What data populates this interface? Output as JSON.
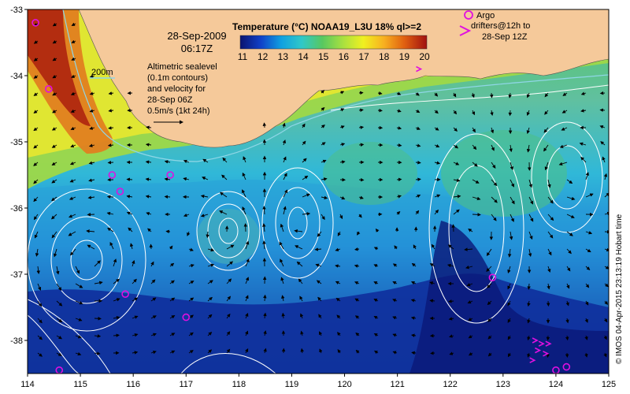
{
  "map": {
    "lon_range": [
      114,
      125
    ],
    "lat_range": [
      -38.5,
      -33
    ],
    "lon_ticks": [
      "114",
      "115",
      "116",
      "117",
      "118",
      "119",
      "120",
      "121",
      "122",
      "123",
      "124",
      "125"
    ],
    "lat_ticks": [
      "-33",
      "-34",
      "-35",
      "-36",
      "-37",
      "-38"
    ],
    "colors": {
      "land": "#f5c99a",
      "contour": "#ffffff",
      "bathy": "#8fd6e6",
      "argo": "#e010e0",
      "arrow": "#000000"
    }
  },
  "title": {
    "date": "28-Sep-2009",
    "time": "06:17Z"
  },
  "legend": {
    "title": "Temperature (°C) NOAA19_L3U 18% ql>=2",
    "ticks": [
      "11",
      "12",
      "13",
      "14",
      "15",
      "16",
      "17",
      "18",
      "19",
      "20"
    ],
    "range": [
      11,
      20
    ],
    "colors": [
      "#0a1470",
      "#1040c8",
      "#10a0e0",
      "#30c8c8",
      "#58c860",
      "#a8e040",
      "#f0f020",
      "#f8b020",
      "#e06010",
      "#a01010"
    ]
  },
  "scale": {
    "bathy_label": "200m"
  },
  "annotation": {
    "lines": [
      "Altimetric sealevel",
      "(0.1m contours)",
      "and velocity for",
      "28-Sep 06Z",
      "0.5m/s (1kt 24h)"
    ]
  },
  "argo_legend": {
    "line1": "Argo",
    "line2": "drifters@12h to",
    "line3": "28-Sep 12Z"
  },
  "credit": "© IMOS 04-Apr-2015 23:13:19 Hobart time",
  "argo_floats": [
    {
      "lon": 114.15,
      "lat": -33.2
    },
    {
      "lon": 114.4,
      "lat": -34.2
    },
    {
      "lon": 115.6,
      "lat": -35.5
    },
    {
      "lon": 115.75,
      "lat": -35.75
    },
    {
      "lon": 116.7,
      "lat": -35.5
    },
    {
      "lon": 115.85,
      "lat": -37.3
    },
    {
      "lon": 117.0,
      "lat": -37.65
    },
    {
      "lon": 114.6,
      "lat": -38.45
    },
    {
      "lon": 122.8,
      "lat": -37.05
    },
    {
      "lon": 124.2,
      "lat": -38.4
    },
    {
      "lon": 124.0,
      "lat": -38.45
    }
  ],
  "argo_drifters": [
    {
      "lon": 123.6,
      "lat": -38.0
    },
    {
      "lon": 123.72,
      "lat": -38.05
    },
    {
      "lon": 123.85,
      "lat": -38.05
    },
    {
      "lon": 123.65,
      "lat": -38.15
    },
    {
      "lon": 123.8,
      "lat": -38.2
    },
    {
      "lon": 123.55,
      "lat": -38.3
    },
    {
      "lon": 121.4,
      "lat": -33.9
    }
  ]
}
